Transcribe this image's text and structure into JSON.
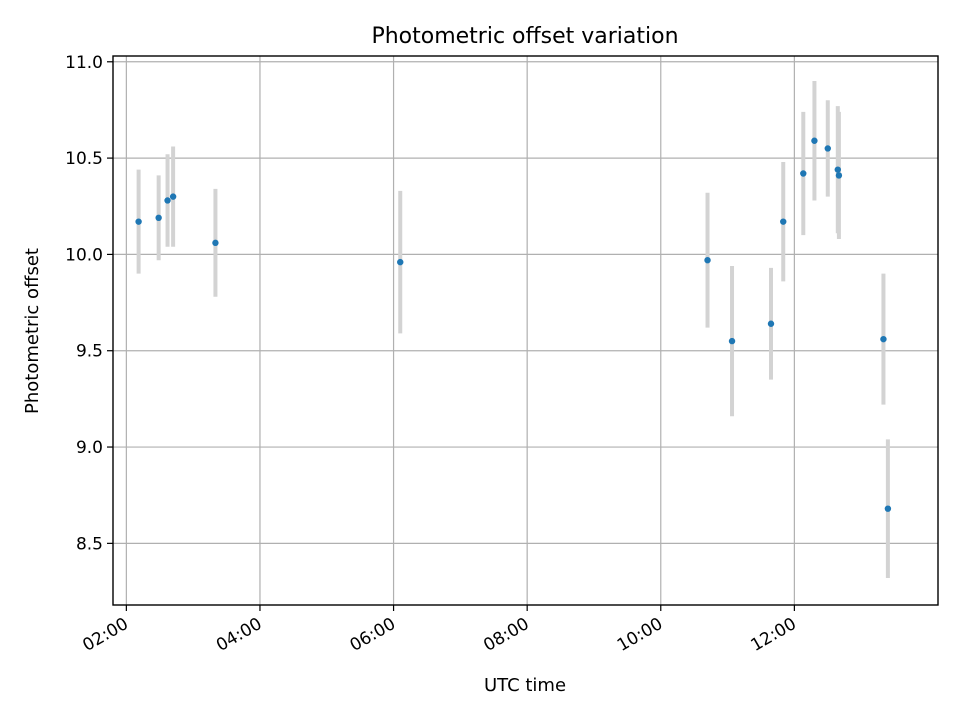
{
  "chart_data": {
    "type": "scatter",
    "title": "Photometric offset variation",
    "xlabel": "UTC time",
    "ylabel": "Photometric offset",
    "xaxis": {
      "kind": "time",
      "range": [
        "01:48",
        "14:09"
      ],
      "ticks": [
        "02:00",
        "04:00",
        "06:00",
        "08:00",
        "10:00",
        "12:00"
      ]
    },
    "yaxis": {
      "range": [
        8.18,
        11.03
      ],
      "ticks": [
        8.5,
        9.0,
        9.5,
        10.0,
        10.5,
        11.0
      ],
      "tick_labels": [
        "8.5",
        "9.0",
        "9.5",
        "10.0",
        "10.5",
        "11.0"
      ]
    },
    "grid": true,
    "marker_color": "#1f77b4",
    "errorbar_color": "#d3d3d3",
    "points": [
      {
        "t": "02:11",
        "y": 10.17,
        "err": 0.27
      },
      {
        "t": "02:29",
        "y": 10.19,
        "err": 0.22
      },
      {
        "t": "02:37",
        "y": 10.28,
        "err": 0.24
      },
      {
        "t": "02:42",
        "y": 10.3,
        "err": 0.26
      },
      {
        "t": "03:20",
        "y": 10.06,
        "err": 0.28
      },
      {
        "t": "06:06",
        "y": 9.96,
        "err": 0.37
      },
      {
        "t": "10:42",
        "y": 9.97,
        "err": 0.35
      },
      {
        "t": "11:04",
        "y": 9.55,
        "err": 0.39
      },
      {
        "t": "11:39",
        "y": 9.64,
        "err": 0.29
      },
      {
        "t": "11:50",
        "y": 10.17,
        "err": 0.31
      },
      {
        "t": "12:08",
        "y": 10.42,
        "err": 0.32
      },
      {
        "t": "12:18",
        "y": 10.59,
        "err": 0.31
      },
      {
        "t": "12:30",
        "y": 10.55,
        "err": 0.25
      },
      {
        "t": "12:39",
        "y": 10.44,
        "err": 0.33
      },
      {
        "t": "12:40",
        "y": 10.41,
        "err": 0.33
      },
      {
        "t": "13:20",
        "y": 9.56,
        "err": 0.34
      },
      {
        "t": "13:24",
        "y": 8.68,
        "err": 0.36
      }
    ]
  }
}
